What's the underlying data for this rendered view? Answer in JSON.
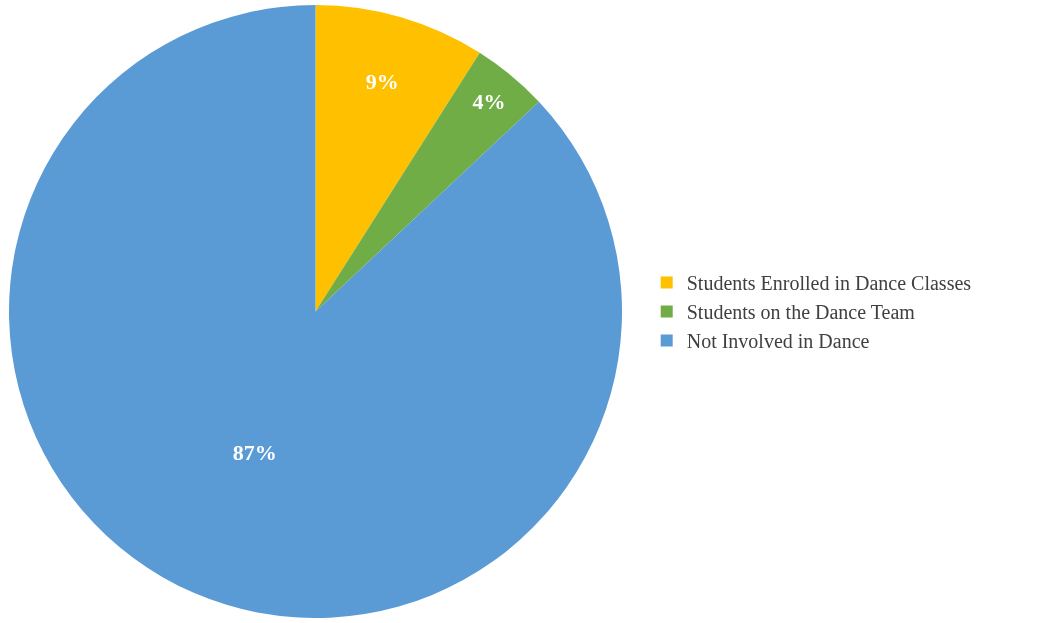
{
  "chart_data": {
    "type": "pie",
    "categories": [
      "Students Enrolled in Dance Classes",
      "Students on the Dance Team",
      "Not Involved in Dance"
    ],
    "values": [
      9,
      4,
      87
    ],
    "colors": [
      "#ffc000",
      "#70ad47",
      "#5b9bd5"
    ],
    "value_labels": [
      "9%",
      "4%",
      "87%"
    ],
    "legend": "right"
  }
}
